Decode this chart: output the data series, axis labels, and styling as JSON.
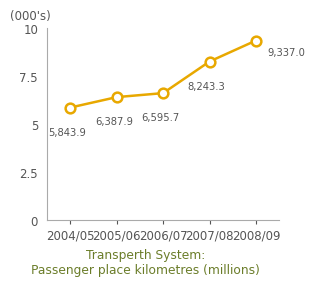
{
  "x_labels": [
    "2004/05",
    "2005/06",
    "2006/07",
    "2007/08",
    "2008/09"
  ],
  "x_values": [
    0,
    1,
    2,
    3,
    4
  ],
  "y_values": [
    5843.9,
    6387.9,
    6595.7,
    8243.3,
    9337.0
  ],
  "line_color": "#E8A800",
  "marker_color": "#E8A800",
  "marker_face": "#FFFFFF",
  "ylim": [
    0,
    10000
  ],
  "yticks": [
    0,
    2500,
    5000,
    7500,
    10000
  ],
  "ytick_labels": [
    "0",
    "2.5",
    "5",
    "7.5",
    "10"
  ],
  "ylabel_top": "(000's)",
  "title_line1": "Transperth System:",
  "title_line2": "Passenger place kilometres (millions)",
  "title_color": "#6b7d2a",
  "bg_color": "#ffffff",
  "annotation_fontsize": 7.2,
  "axis_label_fontsize": 8.5,
  "title_fontsize": 8.8,
  "annot_color": "#555555"
}
